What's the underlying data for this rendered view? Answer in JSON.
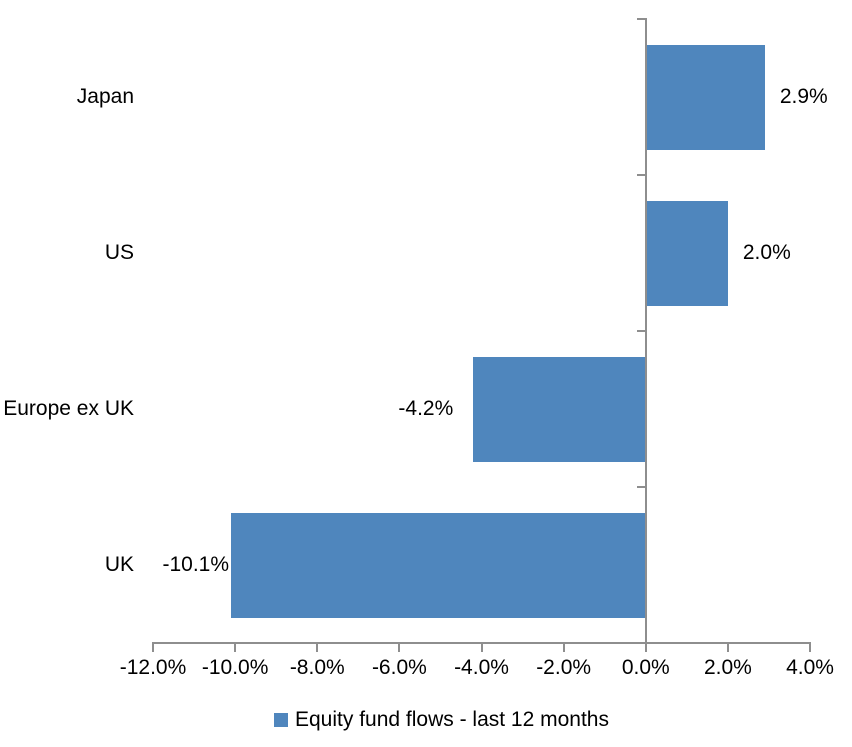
{
  "chart_data": {
    "type": "bar",
    "orientation": "horizontal",
    "categories": [
      "Japan",
      "US",
      "Europe ex UK",
      "UK"
    ],
    "series": [
      {
        "name": "Equity fund flows - last 12 months",
        "values": [
          2.9,
          2.0,
          -4.2,
          -10.1
        ],
        "data_labels": [
          "2.9%",
          "2.0%",
          "-4.2%",
          "-10.1%"
        ]
      }
    ],
    "xlim": [
      -12,
      4
    ],
    "x_tick_values": [
      -12,
      -10,
      -8,
      -6,
      -4,
      -2,
      0,
      2,
      4
    ],
    "x_tick_labels": [
      "-12.0%",
      "-10.0%",
      "-8.0%",
      "-6.0%",
      "-4.0%",
      "-2.0%",
      "0.0%",
      "2.0%",
      "4.0%"
    ],
    "grid": false,
    "legend_position": "bottom",
    "colors": {
      "bar": "#4F86BD",
      "axis": "#8E8E8E",
      "text": "#000000"
    }
  },
  "legend": {
    "label": "Equity fund flows - last 12 months"
  }
}
